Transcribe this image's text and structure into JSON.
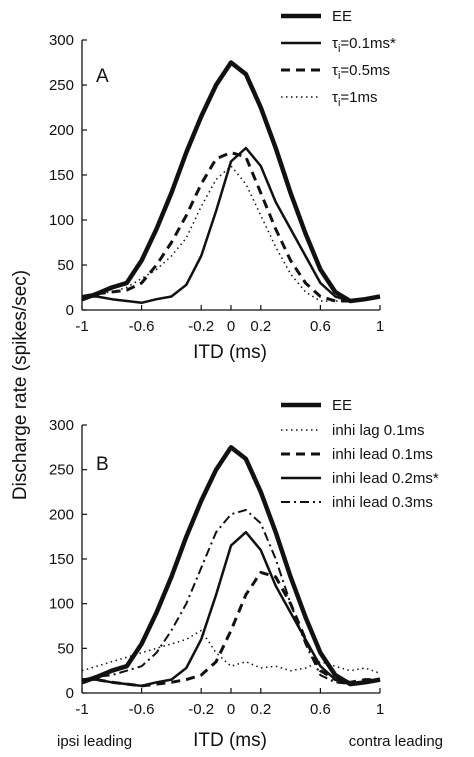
{
  "ylabel": "Discharge rate (spikes/sec)",
  "charts": [
    {
      "panel": "A",
      "type": "line",
      "xlabel": "ITD (ms)",
      "xlim": [
        -1,
        1
      ],
      "ylim": [
        0,
        300
      ],
      "xticks": [
        "-1",
        "-0.6",
        "-0.2",
        "0",
        "0.2",
        "0.6",
        "1"
      ],
      "xtick_values": [
        -1,
        -0.6,
        -0.2,
        0,
        0.2,
        0.6,
        1
      ],
      "yticks": [
        "0",
        "50",
        "100",
        "150",
        "200",
        "250",
        "300"
      ],
      "ytick_values": [
        0,
        50,
        100,
        150,
        200,
        250,
        300
      ],
      "series": [
        {
          "name": "EE",
          "style": "thick",
          "x": [
            -1,
            -0.9,
            -0.8,
            -0.7,
            -0.6,
            -0.5,
            -0.4,
            -0.3,
            -0.2,
            -0.1,
            0,
            0.1,
            0.2,
            0.3,
            0.4,
            0.5,
            0.6,
            0.7,
            0.8,
            0.9,
            1
          ],
          "y": [
            12,
            18,
            25,
            30,
            55,
            90,
            130,
            175,
            215,
            250,
            275,
            262,
            225,
            180,
            130,
            85,
            45,
            20,
            10,
            12,
            15
          ]
        },
        {
          "name_pre": "τ",
          "name_sub": "i",
          "name_post": "=0.1ms*",
          "style": "solid",
          "x": [
            -1,
            -0.9,
            -0.8,
            -0.7,
            -0.6,
            -0.5,
            -0.4,
            -0.3,
            -0.2,
            -0.1,
            0,
            0.1,
            0.2,
            0.3,
            0.4,
            0.5,
            0.6,
            0.7,
            0.8,
            0.9,
            1
          ],
          "y": [
            15,
            15,
            12,
            10,
            8,
            12,
            15,
            28,
            60,
            110,
            165,
            180,
            160,
            120,
            90,
            60,
            30,
            15,
            10,
            12,
            15
          ]
        },
        {
          "name_pre": "τ",
          "name_sub": "i",
          "name_post": "=0.5ms",
          "style": "dashed",
          "x": [
            -1,
            -0.9,
            -0.8,
            -0.7,
            -0.6,
            -0.5,
            -0.4,
            -0.3,
            -0.2,
            -0.1,
            0,
            0.1,
            0.2,
            0.3,
            0.4,
            0.5,
            0.6,
            0.7,
            0.8,
            0.9,
            1
          ],
          "y": [
            15,
            18,
            20,
            22,
            30,
            50,
            75,
            105,
            140,
            168,
            175,
            170,
            130,
            90,
            55,
            30,
            15,
            10,
            10,
            12,
            15
          ]
        },
        {
          "name_pre": "τ",
          "name_sub": "i",
          "name_post": "=1ms",
          "style": "dotted",
          "x": [
            -1,
            -0.9,
            -0.8,
            -0.7,
            -0.6,
            -0.5,
            -0.4,
            -0.3,
            -0.2,
            -0.1,
            0,
            0.1,
            0.2,
            0.3,
            0.4,
            0.5,
            0.6,
            0.7,
            0.8,
            0.9,
            1
          ],
          "y": [
            15,
            18,
            20,
            25,
            35,
            45,
            60,
            80,
            115,
            145,
            160,
            140,
            105,
            70,
            40,
            20,
            10,
            10,
            10,
            12,
            15
          ]
        }
      ]
    },
    {
      "panel": "B",
      "type": "line",
      "xlabel": "ITD (ms)",
      "xlim": [
        -1,
        1
      ],
      "ylim": [
        0,
        300
      ],
      "xticks": [
        "-1",
        "-0.6",
        "-0.2",
        "0",
        "0.2",
        "0.6",
        "1"
      ],
      "xtick_values": [
        -1,
        -0.6,
        -0.2,
        0,
        0.2,
        0.6,
        1
      ],
      "yticks": [
        "0",
        "50",
        "100",
        "150",
        "200",
        "250",
        "300"
      ],
      "ytick_values": [
        0,
        50,
        100,
        150,
        200,
        250,
        300
      ],
      "x_side_labels": {
        "left": "ipsi leading",
        "right": "contra leading"
      },
      "series": [
        {
          "name": "EE",
          "style": "thick",
          "x": [
            -1,
            -0.9,
            -0.8,
            -0.7,
            -0.6,
            -0.5,
            -0.4,
            -0.3,
            -0.2,
            -0.1,
            0,
            0.1,
            0.2,
            0.3,
            0.4,
            0.5,
            0.6,
            0.7,
            0.8,
            0.9,
            1
          ],
          "y": [
            12,
            18,
            25,
            30,
            55,
            90,
            130,
            175,
            215,
            250,
            275,
            262,
            225,
            180,
            130,
            85,
            45,
            20,
            10,
            12,
            15
          ]
        },
        {
          "name": "inhi lag 0.1ms",
          "style": "dotted",
          "x": [
            -1,
            -0.9,
            -0.8,
            -0.7,
            -0.6,
            -0.5,
            -0.4,
            -0.3,
            -0.2,
            -0.1,
            0,
            0.1,
            0.2,
            0.3,
            0.4,
            0.5,
            0.6,
            0.7,
            0.8,
            0.9,
            1
          ],
          "y": [
            25,
            30,
            35,
            40,
            45,
            50,
            55,
            60,
            70,
            45,
            30,
            35,
            28,
            30,
            25,
            28,
            35,
            30,
            25,
            28,
            22
          ]
        },
        {
          "name": "inhi lead 0.1ms",
          "style": "dashed",
          "x": [
            -1,
            -0.9,
            -0.8,
            -0.7,
            -0.6,
            -0.5,
            -0.4,
            -0.3,
            -0.2,
            -0.1,
            0,
            0.1,
            0.2,
            0.3,
            0.4,
            0.5,
            0.6,
            0.7,
            0.8,
            0.9,
            1
          ],
          "y": [
            15,
            15,
            12,
            10,
            8,
            10,
            12,
            15,
            20,
            35,
            70,
            110,
            135,
            130,
            100,
            60,
            25,
            15,
            12,
            15,
            15
          ]
        },
        {
          "name": "inhi lead 0.2ms*",
          "style": "solid",
          "x": [
            -1,
            -0.9,
            -0.8,
            -0.7,
            -0.6,
            -0.5,
            -0.4,
            -0.3,
            -0.2,
            -0.1,
            0,
            0.1,
            0.2,
            0.3,
            0.4,
            0.5,
            0.6,
            0.7,
            0.8,
            0.9,
            1
          ],
          "y": [
            15,
            15,
            12,
            10,
            8,
            12,
            15,
            28,
            60,
            110,
            165,
            180,
            160,
            120,
            90,
            60,
            30,
            15,
            10,
            12,
            15
          ]
        },
        {
          "name": "inhi lead 0.3ms",
          "style": "dashdot",
          "x": [
            -1,
            -0.9,
            -0.8,
            -0.7,
            -0.6,
            -0.5,
            -0.4,
            -0.3,
            -0.2,
            -0.1,
            0,
            0.1,
            0.2,
            0.3,
            0.4,
            0.5,
            0.6,
            0.7,
            0.8,
            0.9,
            1
          ],
          "y": [
            15,
            18,
            20,
            25,
            30,
            45,
            70,
            100,
            140,
            180,
            200,
            205,
            190,
            150,
            100,
            55,
            20,
            12,
            10,
            12,
            15
          ]
        }
      ]
    }
  ]
}
